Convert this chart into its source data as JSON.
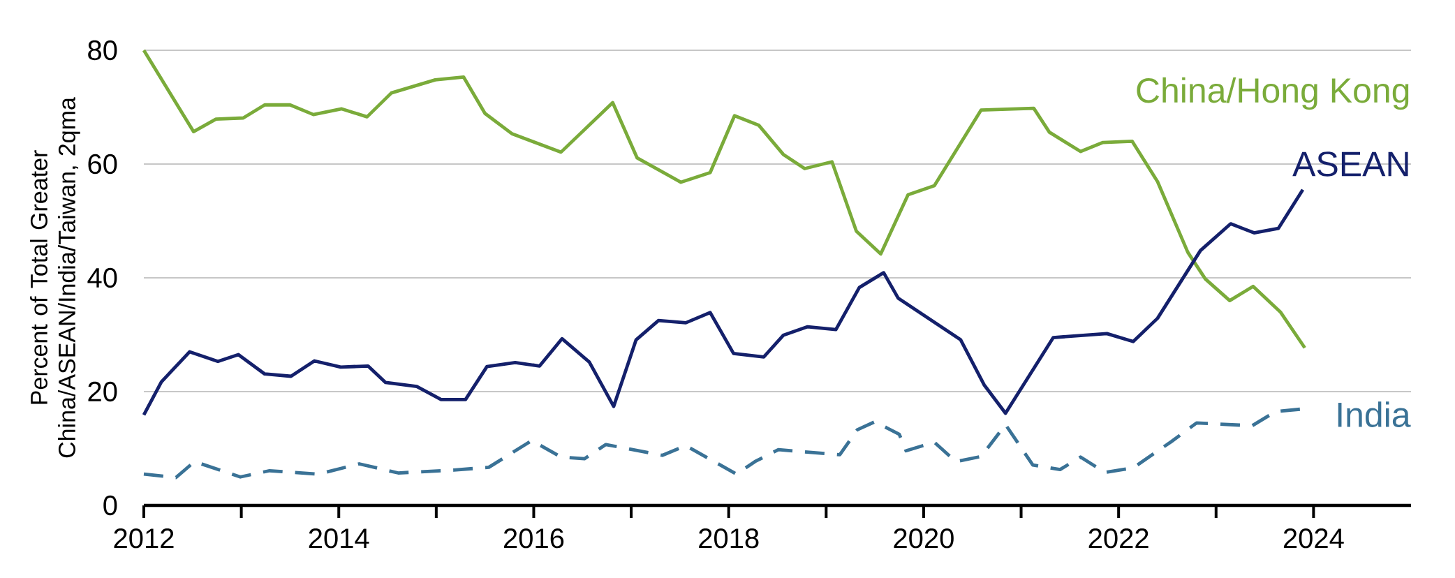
{
  "chart_data": {
    "type": "line",
    "ylabel": "Percent of Total Greater China/ASEAN/India/Taiwan, 2qma",
    "xlim": [
      2012,
      2025
    ],
    "xticks": [
      2012,
      2014,
      2016,
      2018,
      2020,
      2022,
      2024
    ],
    "ylim": [
      0,
      80
    ],
    "yticks": [
      0,
      20,
      40,
      60,
      80
    ],
    "grid": "y",
    "series": [
      {
        "name": "China/Hong Kong",
        "color": "#7aab3a",
        "line_style": "solid",
        "x": [
          2012.0,
          2012.51,
          2012.74,
          2013.02,
          2013.24,
          2013.5,
          2013.74,
          2014.03,
          2014.29,
          2014.54,
          2014.99,
          2015.28,
          2015.5,
          2015.78,
          2016.28,
          2016.81,
          2017.06,
          2017.51,
          2017.81,
          2018.06,
          2018.31,
          2018.56,
          2018.78,
          2019.06,
          2019.31,
          2019.56,
          2019.84,
          2020.11,
          2020.59,
          2021.13,
          2021.29,
          2021.61,
          2021.84,
          2022.14,
          2022.4,
          2022.71,
          2022.89,
          2023.14,
          2023.38,
          2023.66,
          2023.91
        ],
        "values": [
          80,
          65.7,
          67.9,
          68.1,
          70.4,
          70.4,
          68.7,
          69.7,
          68.3,
          72.5,
          74.8,
          75.3,
          68.9,
          65.3,
          62.1,
          70.8,
          61.1,
          56.8,
          58.5,
          68.5,
          66.8,
          61.7,
          59.2,
          60.4,
          48.2,
          44.2,
          54.6,
          56.2,
          69.5,
          69.8,
          65.6,
          62.2,
          63.8,
          64.0,
          56.9,
          44.5,
          39.8,
          36.0,
          38.5,
          34.0,
          27.7
        ]
      },
      {
        "name": "ASEAN",
        "color": "#14206b",
        "line_style": "solid",
        "x": [
          2012.0,
          2012.18,
          2012.47,
          2012.76,
          2012.97,
          2013.24,
          2013.51,
          2013.75,
          2014.02,
          2014.3,
          2014.48,
          2014.8,
          2015.05,
          2015.3,
          2015.52,
          2015.81,
          2016.06,
          2016.29,
          2016.57,
          2016.82,
          2017.05,
          2017.28,
          2017.56,
          2017.81,
          2018.05,
          2018.36,
          2018.56,
          2018.81,
          2019.1,
          2019.34,
          2019.59,
          2019.74,
          2020.38,
          2020.62,
          2020.84,
          2021.33,
          2021.88,
          2022.15,
          2022.4,
          2022.84,
          2023.15,
          2023.39,
          2023.64,
          2023.89
        ],
        "values": [
          15.9,
          21.7,
          27.0,
          25.3,
          26.5,
          23.1,
          22.7,
          25.4,
          24.3,
          24.5,
          21.6,
          20.9,
          18.6,
          18.6,
          24.4,
          25.1,
          24.5,
          29.3,
          25.2,
          17.4,
          29.1,
          32.5,
          32.1,
          33.9,
          26.7,
          26.1,
          29.9,
          31.4,
          30.9,
          38.3,
          40.9,
          36.4,
          29.1,
          21.2,
          16.2,
          29.5,
          30.2,
          28.8,
          32.9,
          44.8,
          49.5,
          47.9,
          48.7,
          55.5
        ]
      },
      {
        "name": "India",
        "color": "#3a7296",
        "line_style": "dashed",
        "x": [
          2012.0,
          2012.33,
          2012.52,
          2012.99,
          2013.29,
          2013.79,
          2014.21,
          2014.61,
          2015.18,
          2015.54,
          2015.98,
          2016.28,
          2016.52,
          2016.74,
          2017.32,
          2017.56,
          2018.08,
          2018.27,
          2018.51,
          2019.14,
          2019.32,
          2019.5,
          2019.75,
          2019.82,
          2020.11,
          2020.33,
          2020.59,
          2020.84,
          2021.12,
          2021.4,
          2021.61,
          2021.86,
          2022.15,
          2022.54,
          2022.8,
          2023.37,
          2023.61,
          2023.86
        ],
        "values": [
          5.5,
          4.9,
          7.7,
          5.0,
          6.1,
          5.5,
          7.3,
          5.7,
          6.2,
          6.7,
          11.4,
          8.5,
          8.2,
          10.7,
          8.8,
          10.5,
          5.5,
          7.7,
          9.8,
          8.9,
          13.3,
          14.7,
          12.5,
          9.6,
          11.1,
          7.7,
          8.6,
          14.2,
          7.1,
          6.3,
          8.5,
          5.8,
          6.6,
          11.2,
          14.5,
          14.0,
          16.5,
          16.9
        ]
      }
    ]
  }
}
